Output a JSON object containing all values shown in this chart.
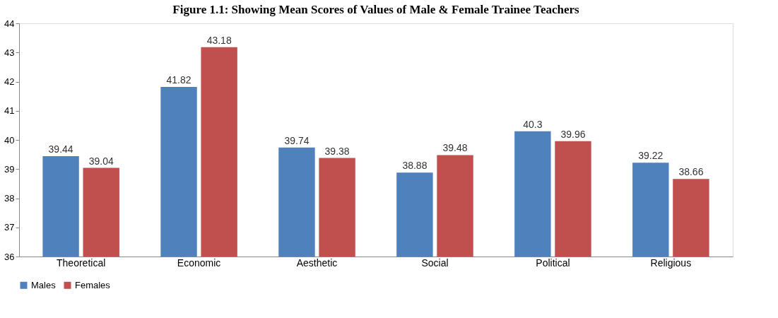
{
  "chart_data": {
    "type": "bar",
    "title": "Figure 1.1: Showing Mean Scores of Values of Male & Female Trainee Teachers",
    "categories": [
      "Theoretical",
      "Economic",
      "Aesthetic",
      "Social",
      "Political",
      "Religious"
    ],
    "series": [
      {
        "name": "Males",
        "color": "#4f81bd",
        "values": [
          39.44,
          41.82,
          39.74,
          38.88,
          40.3,
          39.22
        ]
      },
      {
        "name": "Females",
        "color": "#c0504d",
        "values": [
          39.04,
          43.18,
          39.38,
          39.48,
          39.96,
          38.66
        ]
      }
    ],
    "ylim": [
      36,
      44
    ],
    "yticks": [
      36,
      37,
      38,
      39,
      40,
      41,
      42,
      43,
      44
    ],
    "grid": false,
    "legend": "bottom",
    "data_labels": true
  }
}
